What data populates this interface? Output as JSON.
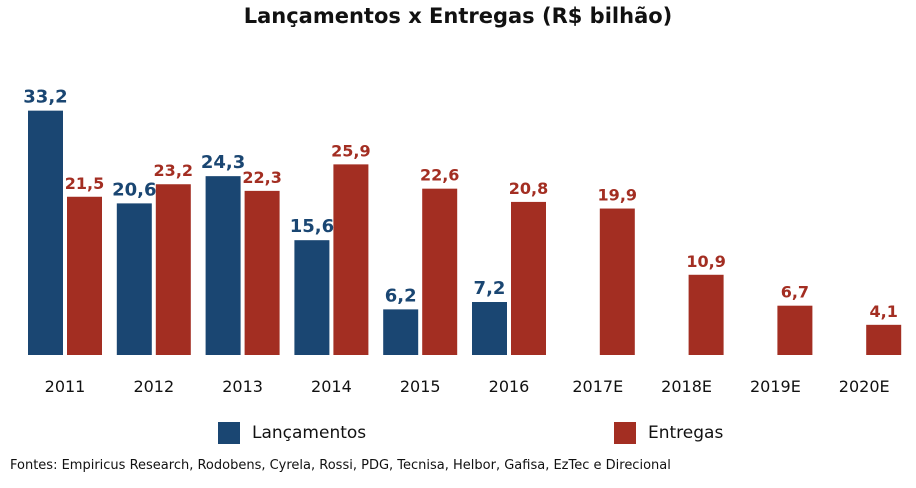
{
  "chart_data": {
    "type": "bar",
    "title": "Lançamentos x Entregas (R$ bilhão)",
    "categories": [
      "2011",
      "2012",
      "2013",
      "2014",
      "2015",
      "2016",
      "2017E",
      "2018E",
      "2019E",
      "2020E"
    ],
    "series": [
      {
        "name": "Lançamentos",
        "color": "#1a4672",
        "values": [
          33.2,
          20.6,
          24.3,
          15.6,
          6.2,
          7.2,
          null,
          null,
          null,
          null
        ],
        "labels": [
          "33,2",
          "20,6",
          "24,3",
          "15,6",
          "6,2",
          "7,2",
          null,
          null,
          null,
          null
        ]
      },
      {
        "name": "Entregas",
        "color": "#a32e22",
        "values": [
          21.5,
          23.2,
          22.3,
          25.9,
          22.6,
          20.8,
          19.9,
          10.9,
          6.7,
          4.1
        ],
        "labels": [
          "21,5",
          "23,2",
          "22,3",
          "25,9",
          "22,6",
          "20,8",
          "19,9",
          "10,9",
          "6,7",
          "4,1"
        ]
      }
    ],
    "legend_position": "bottom",
    "grid": false,
    "source": "Fontes: Empiricus Research, Rodobens, Cyrela, Rossi, PDG, Tecnisa, Helbor, Gafisa, EzTec e Direcional"
  }
}
